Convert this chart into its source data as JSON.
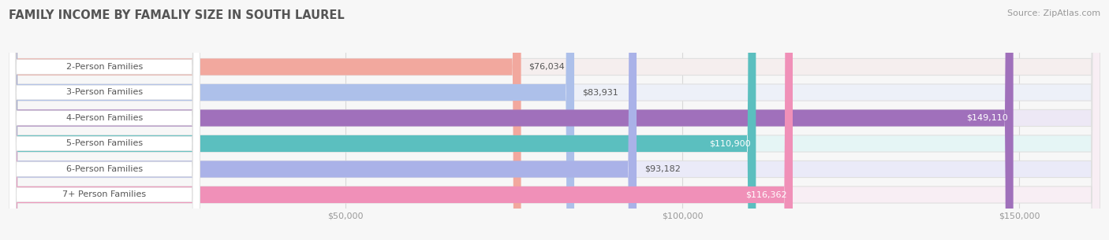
{
  "title": "FAMILY INCOME BY FAMALIY SIZE IN SOUTH LAUREL",
  "source": "Source: ZipAtlas.com",
  "categories": [
    "2-Person Families",
    "3-Person Families",
    "4-Person Families",
    "5-Person Families",
    "6-Person Families",
    "7+ Person Families"
  ],
  "values": [
    76034,
    83931,
    149110,
    110900,
    93182,
    116362
  ],
  "labels": [
    "$76,034",
    "$83,931",
    "$149,110",
    "$110,900",
    "$93,182",
    "$116,362"
  ],
  "bar_colors": [
    "#f2a89e",
    "#adc0ea",
    "#a070bb",
    "#5bbfbf",
    "#aab2e8",
    "#f090b8"
  ],
  "bar_bg_colors": [
    "#f5eeee",
    "#edf0f8",
    "#ede8f5",
    "#e5f5f5",
    "#eaeaf8",
    "#f8eef4"
  ],
  "label_inside": [
    false,
    false,
    true,
    true,
    false,
    true
  ],
  "xlim": [
    0,
    162000
  ],
  "xtick_vals": [
    50000,
    100000,
    150000
  ],
  "xticklabels": [
    "$50,000",
    "$100,000",
    "$150,000"
  ],
  "background_color": "#f7f7f7",
  "bar_height": 0.65,
  "title_fontsize": 10.5,
  "label_fontsize": 8,
  "category_fontsize": 8,
  "source_fontsize": 8
}
